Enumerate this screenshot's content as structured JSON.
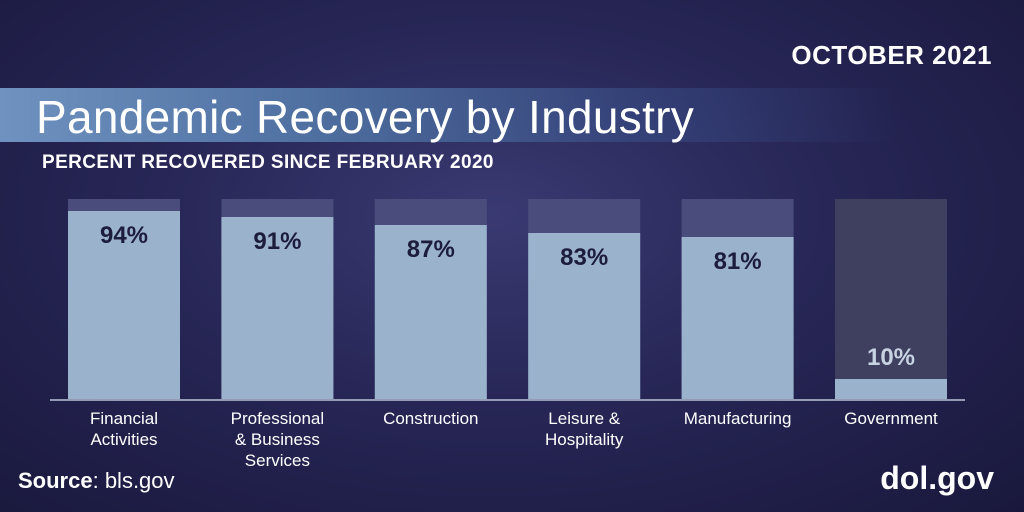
{
  "header": {
    "date": "OCTOBER 2021",
    "title": "Pandemic Recovery by Industry",
    "subtitle": "PERCENT RECOVERED SINCE FEBRUARY 2020"
  },
  "footer": {
    "source_label": "Source",
    "source_value": ": bls.gov",
    "brand": "dol.gov"
  },
  "colors": {
    "bar_fill": "#9bb2cd",
    "bar_track": "#4a4d7c",
    "bar_track_highlight": "#3f3f5f",
    "value_label_dark": "#1c1c3c",
    "value_label_light": "#c7d3e3",
    "baseline": "#b9c4d8"
  },
  "chart_data": {
    "type": "bar",
    "title": "Pandemic Recovery by Industry",
    "subtitle": "PERCENT RECOVERED SINCE FEBRUARY 2020",
    "categories": [
      [
        "Financial",
        "Activities"
      ],
      [
        "Professional",
        "& Business",
        "Services"
      ],
      [
        "Construction"
      ],
      [
        "Leisure &",
        "Hospitality"
      ],
      [
        "Manufacturing"
      ],
      [
        "Government"
      ]
    ],
    "values": [
      94,
      91,
      87,
      83,
      81,
      10
    ],
    "value_labels": [
      "94%",
      "91%",
      "87%",
      "83%",
      "81%",
      "10%"
    ],
    "ylim": [
      0,
      100
    ],
    "grid": false,
    "legend": "none"
  }
}
